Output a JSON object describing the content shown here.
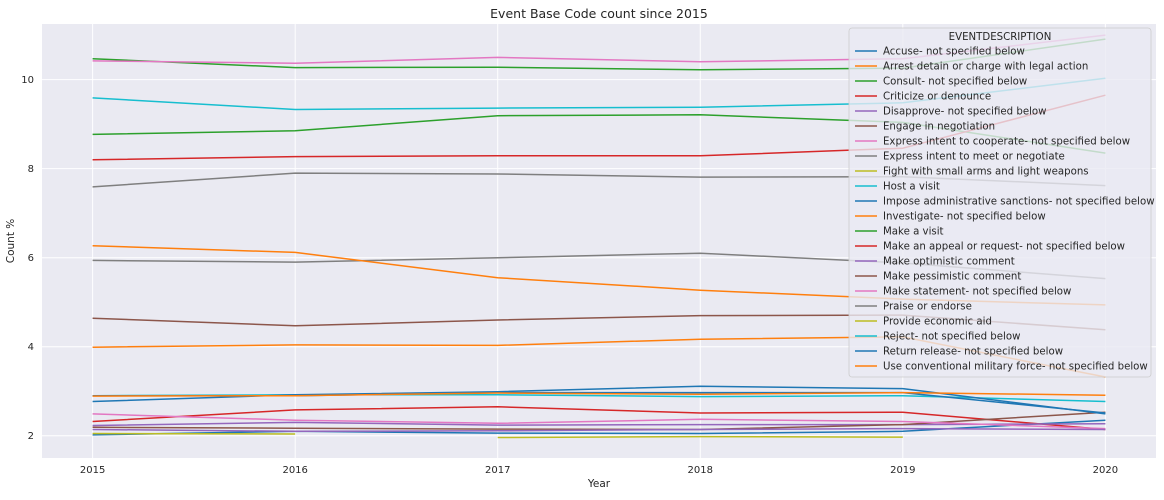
{
  "chart_data": {
    "type": "line",
    "title": "Event Base Code count since 2015",
    "xlabel": "Year",
    "ylabel": "Count %",
    "x": [
      2015,
      2016,
      2017,
      2018,
      2019,
      2020
    ],
    "xlim": [
      2014.75,
      2020.25
    ],
    "ylim": [
      1.5,
      11.25
    ],
    "yticks": [
      2,
      4,
      6,
      8,
      10
    ],
    "grid": true,
    "legend": {
      "title": "EVENTDESCRIPTION",
      "placement": "top-right"
    },
    "series": [
      {
        "name": "Accuse- not specified below",
        "color": "#1f77b4",
        "values": [
          2.02,
          2.1,
          2.06,
          2.05,
          2.1,
          2.35
        ]
      },
      {
        "name": "Arrest detain or charge with legal action",
        "color": "#ff7f0e",
        "values": [
          3.99,
          4.04,
          4.03,
          4.17,
          4.22,
          3.32
        ]
      },
      {
        "name": "Consult- not specified below",
        "color": "#2ca02c",
        "values": [
          8.77,
          8.85,
          9.19,
          9.21,
          9.04,
          8.35
        ]
      },
      {
        "name": "Criticize or denounce",
        "color": "#d62728",
        "values": [
          2.32,
          2.58,
          2.65,
          2.51,
          2.53,
          2.14
        ]
      },
      {
        "name": "Disapprove- not specified below",
        "color": "#9467bd",
        "values": [
          2.23,
          2.3,
          2.24,
          2.25,
          2.25,
          2.27
        ]
      },
      {
        "name": "Engage in negotiation",
        "color": "#8c564b",
        "values": [
          2.19,
          2.17,
          2.15,
          2.14,
          2.25,
          2.53
        ]
      },
      {
        "name": "Express intent to cooperate- not specified below",
        "color": "#e377c2",
        "values": [
          2.49,
          2.35,
          2.28,
          2.37,
          2.32,
          2.16
        ]
      },
      {
        "name": "Express intent to meet or negotiate",
        "color": "#7f7f7f",
        "values": [
          5.94,
          5.9,
          6.0,
          6.1,
          5.88,
          5.53
        ]
      },
      {
        "name": "Fight with small arms and light weapons",
        "color": "#bcbd22",
        "values": [
          2.05,
          2.04,
          null,
          null,
          null,
          null
        ]
      },
      {
        "name": "Host a visit",
        "color": "#17becf",
        "values": [
          2.9,
          2.92,
          2.92,
          2.88,
          2.9,
          2.77
        ]
      },
      {
        "name": "Impose administrative sanctions- not specified below",
        "color": "#1f77b4",
        "values": [
          2.77,
          2.92,
          2.99,
          3.11,
          3.06,
          2.49
        ]
      },
      {
        "name": "Investigate- not specified below",
        "color": "#ff7f0e",
        "values": [
          6.27,
          6.12,
          5.55,
          5.27,
          5.07,
          4.94
        ]
      },
      {
        "name": "Make a visit",
        "color": "#2ca02c",
        "values": [
          10.47,
          10.27,
          10.28,
          10.22,
          10.26,
          10.91
        ]
      },
      {
        "name": "Make an appeal or request- not specified below",
        "color": "#d62728",
        "values": [
          8.2,
          8.27,
          8.29,
          8.29,
          8.46,
          9.65
        ]
      },
      {
        "name": "Make optimistic comment",
        "color": "#9467bd",
        "values": [
          2.14,
          2.1,
          2.11,
          2.14,
          2.16,
          2.14
        ]
      },
      {
        "name": "Make pessimistic comment",
        "color": "#8c564b",
        "values": [
          4.64,
          4.47,
          4.6,
          4.7,
          4.71,
          4.38
        ]
      },
      {
        "name": "Make statement- not specified below",
        "color": "#e377c2",
        "values": [
          10.42,
          10.37,
          10.5,
          10.4,
          10.47,
          11.0
        ]
      },
      {
        "name": "Praise or endorse",
        "color": "#7f7f7f",
        "values": [
          7.59,
          7.9,
          7.88,
          7.81,
          7.82,
          7.62
        ]
      },
      {
        "name": "Provide economic aid",
        "color": "#bcbd22",
        "values": [
          null,
          null,
          1.96,
          1.98,
          1.97,
          null
        ]
      },
      {
        "name": "Reject- not specified below",
        "color": "#17becf",
        "values": [
          9.59,
          9.33,
          9.36,
          9.38,
          9.48,
          10.03
        ]
      },
      {
        "name": "Return release- not specified below",
        "color": "#1f77b4",
        "values": [
          2.9,
          2.9,
          2.97,
          2.97,
          2.97,
          2.51
        ]
      },
      {
        "name": "Use conventional military force- not specified below",
        "color": "#ff7f0e",
        "values": [
          2.89,
          2.9,
          2.96,
          2.93,
          2.97,
          2.91
        ]
      }
    ]
  }
}
